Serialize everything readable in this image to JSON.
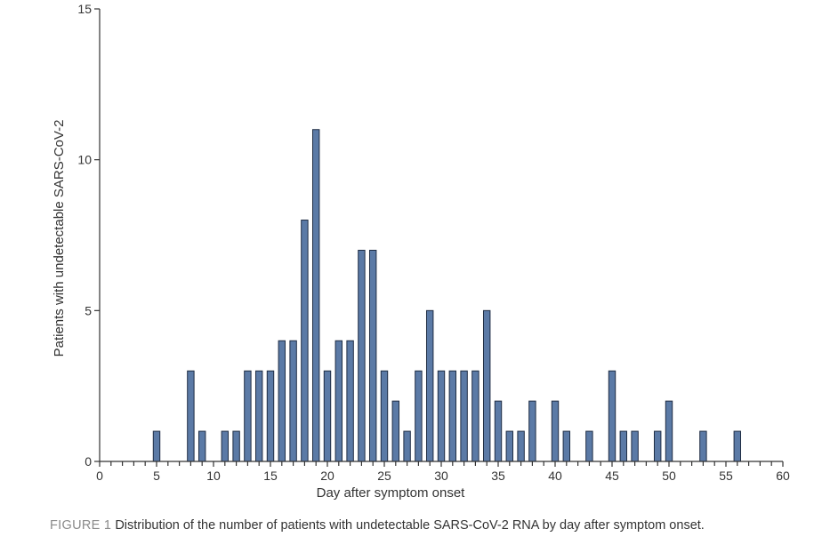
{
  "chart_data": {
    "type": "bar",
    "title": "",
    "xlabel": "Day after symptom onset",
    "ylabel": "Patients with undetectable SARS-CoV-2",
    "xlim": [
      0,
      60
    ],
    "ylim": [
      0,
      15
    ],
    "x_major_ticks": [
      0,
      5,
      10,
      15,
      20,
      25,
      30,
      35,
      40,
      45,
      50,
      55,
      60
    ],
    "y_major_ticks": [
      0,
      5,
      10,
      15
    ],
    "x": [
      5,
      8,
      9,
      11,
      12,
      13,
      14,
      15,
      16,
      17,
      18,
      19,
      20,
      21,
      22,
      23,
      24,
      25,
      26,
      27,
      28,
      29,
      30,
      31,
      32,
      33,
      34,
      35,
      36,
      37,
      38,
      40,
      41,
      43,
      45,
      46,
      47,
      49,
      50,
      53,
      56
    ],
    "values": [
      1,
      3,
      1,
      1,
      1,
      3,
      3,
      3,
      4,
      4,
      8,
      11,
      3,
      4,
      4,
      7,
      7,
      3,
      2,
      1,
      3,
      5,
      3,
      3,
      3,
      3,
      5,
      2,
      1,
      1,
      2,
      2,
      1,
      1,
      3,
      1,
      1,
      1,
      2,
      1,
      1
    ],
    "bar_color": "#5b7aa6",
    "edge_color": "#1f2d44"
  },
  "caption": {
    "label": "FIGURE 1",
    "text": "Distribution of the number of patients with undetectable SARS-CoV-2 RNA by day after symptom onset."
  }
}
